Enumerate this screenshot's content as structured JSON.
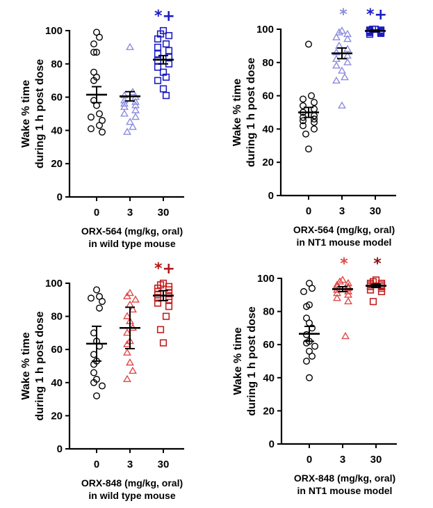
{
  "chart_data": [
    {
      "type": "scatter",
      "ylabel_line1": "Wake % time",
      "ylabel_line2": "during 1 h post dose",
      "xlabel_line1": "ORX-564 (mg/kg, oral)",
      "xlabel_line2": "in wild type mouse",
      "categories": [
        "0",
        "3",
        "30"
      ],
      "ylim": [
        0,
        100
      ],
      "yticks": [
        "0",
        "20",
        "40",
        "60",
        "80",
        "100"
      ],
      "groups": [
        {
          "dose": "0",
          "marker": "circle",
          "color": "#000000",
          "values": [
            99,
            96,
            92,
            87,
            87,
            75,
            72,
            70,
            58,
            55,
            50,
            48,
            46,
            43,
            41,
            39
          ],
          "mean": 61.5,
          "sem": 4.8,
          "annotation": ""
        },
        {
          "dose": "3",
          "marker": "triangle",
          "color": "#8c8ce0",
          "values": [
            90,
            63,
            61,
            60,
            58,
            57,
            56,
            55,
            54,
            52,
            50,
            48,
            45,
            42,
            39
          ],
          "mean": 60.5,
          "sem": 2.8,
          "annotation": ""
        },
        {
          "dose": "30",
          "marker": "square",
          "color": "#1c1cc4",
          "values": [
            100,
            98,
            97,
            95,
            92,
            90,
            88,
            86,
            84,
            82,
            80,
            78,
            75,
            72,
            70,
            65,
            61
          ],
          "mean": 82.5,
          "sem": 2.5,
          "annotation": "*+",
          "annotation_color": "#1c1cc4"
        }
      ]
    },
    {
      "type": "scatter",
      "ylabel_line1": "Wake % time",
      "ylabel_line2": "during 1 h post dose",
      "xlabel_line1": "ORX-564 (mg/kg, oral)",
      "xlabel_line2": "in NT1 mouse model",
      "categories": [
        "0",
        "3",
        "30"
      ],
      "ylim": [
        0,
        100
      ],
      "yticks": [
        "0",
        "20",
        "40",
        "60",
        "80",
        "100"
      ],
      "groups": [
        {
          "dose": "0",
          "marker": "circle",
          "color": "#000000",
          "values": [
            91,
            60,
            58,
            56,
            54,
            52,
            50,
            48,
            47,
            46,
            45,
            44,
            42,
            40,
            37,
            28
          ],
          "mean": 50,
          "sem": 3,
          "annotation": ""
        },
        {
          "dose": "3",
          "marker": "triangle",
          "color": "#8c8ce0",
          "values": [
            99,
            98,
            97,
            95,
            94,
            90,
            88,
            86,
            84,
            82,
            80,
            78,
            75,
            71,
            69,
            54
          ],
          "mean": 85.5,
          "sem": 3.2,
          "annotation": "*",
          "annotation_color": "#8c8ce0"
        },
        {
          "dose": "30",
          "marker": "square",
          "color": "#1c1cc4",
          "values": [
            100,
            100,
            99.5,
            99.5,
            99,
            99,
            98.5,
            98.5,
            98,
            98,
            97.5,
            97
          ],
          "mean": 99,
          "sem": 0.5,
          "annotation": "*+",
          "annotation_color": "#1c1cc4"
        }
      ]
    },
    {
      "type": "scatter",
      "ylabel_line1": "Wake % time",
      "ylabel_line2": "during 1 h post dose",
      "xlabel_line1": "ORX-848 (mg/kg, oral)",
      "xlabel_line2": "in wild type mouse",
      "categories": [
        "0",
        "3",
        "30"
      ],
      "ylim": [
        0,
        100
      ],
      "yticks": [
        "0",
        "20",
        "40",
        "60",
        "80",
        "100"
      ],
      "groups": [
        {
          "dose": "0",
          "marker": "circle",
          "color": "#000000",
          "values": [
            96,
            92,
            91,
            89,
            85,
            70,
            65,
            62,
            57,
            53,
            51,
            46,
            42,
            40,
            38,
            32
          ],
          "mean": 63.5,
          "sem": 10.5,
          "annotation": ""
        },
        {
          "dose": "3",
          "marker": "triangle",
          "color": "#e04848",
          "values": [
            94,
            92,
            90,
            87,
            84,
            80,
            77,
            73,
            70,
            65,
            63,
            58,
            52,
            47,
            42
          ],
          "mean": 73,
          "sem": 12.5,
          "annotation": ""
        },
        {
          "dose": "30",
          "marker": "square",
          "color": "#c21d1d",
          "values": [
            100,
            99,
            98,
            97,
            96,
            95,
            94,
            93,
            92,
            91,
            90,
            88,
            86,
            80,
            72,
            64
          ],
          "mean": 92.5,
          "sem": 3,
          "annotation": "*+",
          "annotation_color": "#b01818"
        }
      ]
    },
    {
      "type": "scatter",
      "ylabel_line1": "Wake % time",
      "ylabel_line2": "during 1 h post dose",
      "xlabel_line1": "ORX-848 (mg/kg, oral)",
      "xlabel_line2": "in NT1 mouse model",
      "categories": [
        "0",
        "3",
        "30"
      ],
      "ylim": [
        0,
        100
      ],
      "yticks": [
        "0",
        "20",
        "40",
        "60",
        "80",
        "100"
      ],
      "groups": [
        {
          "dose": "0",
          "marker": "circle",
          "color": "#000000",
          "values": [
            97,
            94,
            92,
            84,
            83,
            76,
            73,
            70,
            66,
            62,
            61,
            59,
            56,
            53,
            50,
            40
          ],
          "mean": 66.5,
          "sem": 4.5,
          "annotation": ""
        },
        {
          "dose": "3",
          "marker": "triangle",
          "color": "#e04848",
          "values": [
            99,
            98,
            97,
            96,
            95,
            95,
            94,
            93,
            92,
            91,
            90,
            88,
            86,
            65
          ],
          "mean": 93.5,
          "sem": 1.5,
          "annotation": "*",
          "annotation_color": "#e04848"
        },
        {
          "dose": "30",
          "marker": "square",
          "color": "#c21d1d",
          "values": [
            99,
            98,
            97,
            97,
            96,
            96,
            95,
            95,
            94,
            93,
            92,
            86
          ],
          "mean": 95.5,
          "sem": 1,
          "annotation": "*",
          "annotation_color": "#8c1010"
        }
      ]
    }
  ]
}
